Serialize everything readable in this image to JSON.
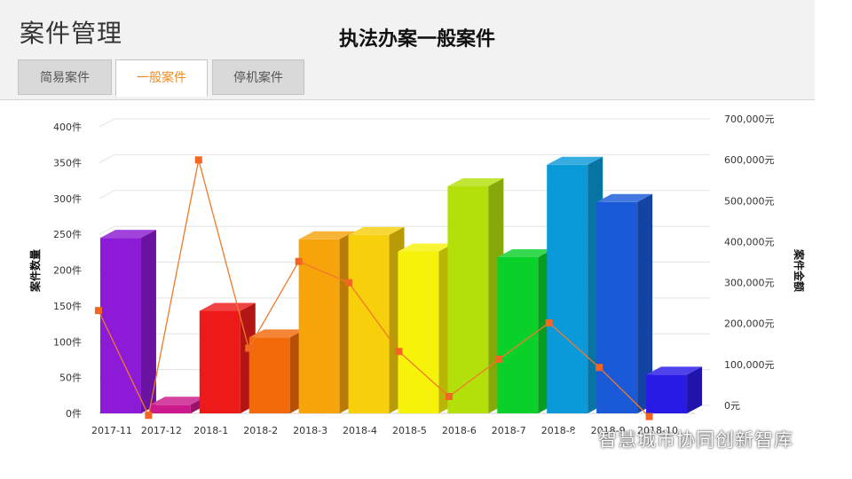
{
  "header": {
    "page_title": "案件管理",
    "chart_title": "执法办案一般案件"
  },
  "tabs": [
    {
      "label": "简易案件",
      "active": false
    },
    {
      "label": "一般案件",
      "active": true
    },
    {
      "label": "停机案件",
      "active": false
    }
  ],
  "watermark": {
    "text": "智慧城市协同创新智库",
    "icon": "wechat-icon"
  },
  "colors": {
    "accent": "#f08c1e",
    "line": "#f07a2a",
    "line_marker": "#f26522",
    "grid": "#e3e3e3"
  },
  "chart_data": {
    "type": "bar",
    "title": "执法办案一般案件",
    "categories": [
      "2017-11",
      "2017-12",
      "2018-1",
      "2018-2",
      "2018-3",
      "2018-4",
      "2018-5",
      "2018-6",
      "2018-7",
      "2018-8",
      "2018-9",
      "2018-10"
    ],
    "series": [
      {
        "axis": "left",
        "type": "bar",
        "values": [
          245,
          12,
          143,
          106,
          243,
          249,
          226,
          317,
          218,
          347,
          295,
          54
        ],
        "colors": [
          "#8c1ad6",
          "#cc1a8c",
          "#ee1a1a",
          "#f26a0a",
          "#f7a30a",
          "#f7cf0a",
          "#f7f20a",
          "#b3e00a",
          "#0ad12a",
          "#0a9ad9",
          "#1a5ad9",
          "#2a1ae6"
        ]
      },
      {
        "axis": "right",
        "type": "line",
        "values": [
          262000,
          6000,
          630000,
          170000,
          382000,
          330000,
          162000,
          52000,
          143000,
          232000,
          123000,
          3000
        ]
      }
    ],
    "ylabel_left": "案件数量",
    "ylabel_right": "案件金额",
    "ylim_left": [
      0,
      400
    ],
    "ylim_right": [
      0,
      700000
    ],
    "y_ticks_left": [
      "0件",
      "50件",
      "100件",
      "150件",
      "200件",
      "250件",
      "300件",
      "350件",
      "400件"
    ],
    "y_ticks_right": [
      "0元",
      "100,000元",
      "200,000元",
      "300,000元",
      "400,000元",
      "500,000元",
      "600,000元",
      "700,000元"
    ],
    "grid": true
  }
}
